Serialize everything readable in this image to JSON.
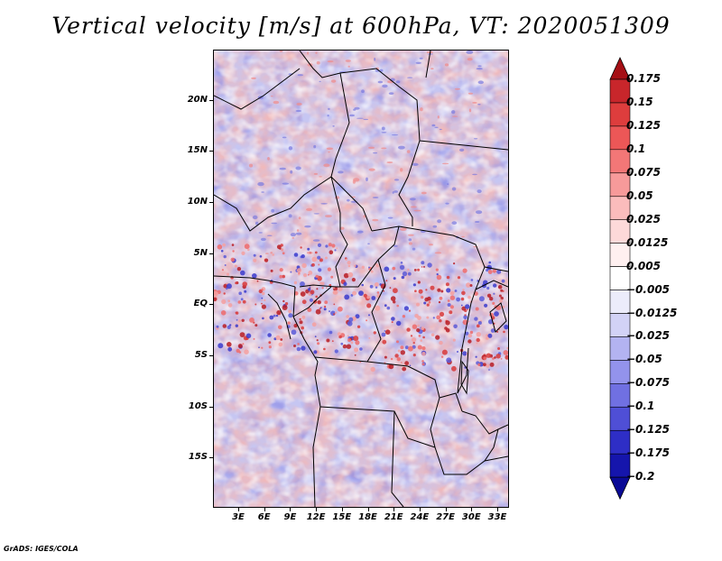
{
  "title": "Vertical velocity [m/s] at 600hPa, VT: 2020051309",
  "footer": "GrADS: IGES/COLA",
  "map": {
    "lat_labels": [
      "20N",
      "15N",
      "10N",
      "5N",
      "EQ",
      "5S",
      "10S",
      "15S"
    ],
    "lon_labels": [
      "3E",
      "6E",
      "9E",
      "12E",
      "15E",
      "18E",
      "21E",
      "24E",
      "27E",
      "30E",
      "33E"
    ]
  },
  "colorbar": {
    "levels": [
      "0.175",
      "0.15",
      "0.125",
      "0.1",
      "0.075",
      "0.05",
      "0.025",
      "0.0125",
      "0.005",
      "−0.005",
      "−0.0125",
      "−0.025",
      "−0.05",
      "−0.075",
      "−0.1",
      "−0.125",
      "−0.175",
      "−0.2"
    ],
    "colors": [
      "#a50f15",
      "#c8262b",
      "#de3d3d",
      "#ec5757",
      "#f37777",
      "#f79a9a",
      "#fbbcbc",
      "#fdd9d9",
      "#fff0f0",
      "#ffffff",
      "#ececfb",
      "#d2d2f6",
      "#b3b3f1",
      "#9393ec",
      "#7070e2",
      "#4f4fd6",
      "#2e2ec6",
      "#1515ac",
      "#0a0a96"
    ]
  }
}
